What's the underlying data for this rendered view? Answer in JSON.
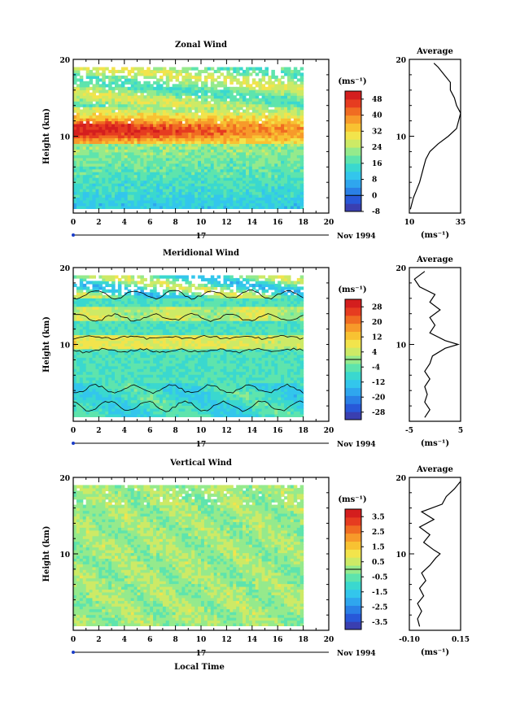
{
  "chart_data": [
    {
      "type": "heatmap",
      "title": "Zonal Wind",
      "ylabel": "Height (km)",
      "x_ticks": [
        "0",
        "2",
        "4",
        "6",
        "8",
        "10",
        "12",
        "14",
        "16",
        "18",
        "20"
      ],
      "y_ticks": [
        "10",
        "20"
      ],
      "xlim": [
        0,
        20
      ],
      "ylim": [
        0,
        20
      ],
      "date_label": "17",
      "date_suffix": "Nov 1994",
      "colorbar": {
        "unit": "(ms⁻¹)",
        "labels": [
          "48",
          "40",
          "32",
          "24",
          "16",
          "8",
          "0",
          "-8"
        ],
        "range": [
          -8,
          52
        ],
        "colors": [
          "#3a3fb0",
          "#2858d8",
          "#2a80e6",
          "#2fa6ee",
          "#33c6ec",
          "#3ad8cf",
          "#5ee4ad",
          "#95ea8c",
          "#cdea66",
          "#f2e44c",
          "#f8c232",
          "#f79a2a",
          "#f06c22",
          "#e63c20",
          "#d41e1e"
        ]
      },
      "profile": {
        "title": "Average",
        "x_ticks": [
          "10",
          "35"
        ],
        "xlim": [
          10,
          35
        ],
        "y_ticks": [
          "10",
          "20"
        ],
        "unit": "(ms⁻¹)",
        "heights": [
          0.5,
          1,
          2,
          3,
          4,
          5,
          6,
          7,
          8,
          9,
          10,
          11,
          12,
          13,
          14,
          15,
          16,
          17,
          18,
          19,
          19.5
        ],
        "values": [
          10.5,
          11,
          12,
          13.5,
          15,
          16,
          17,
          18,
          20,
          24,
          29,
          33,
          34,
          35,
          33,
          32,
          30,
          30,
          27,
          24,
          22
        ]
      },
      "data_extent_hours": 18
    },
    {
      "type": "heatmap",
      "title": "Meridional Wind",
      "ylabel": "Height (km)",
      "x_ticks": [
        "0",
        "2",
        "4",
        "6",
        "8",
        "10",
        "12",
        "14",
        "16",
        "18",
        "20"
      ],
      "y_ticks": [
        "10",
        "20"
      ],
      "xlim": [
        0,
        20
      ],
      "ylim": [
        0,
        20
      ],
      "date_label": "17",
      "date_suffix": "Nov 1994",
      "colorbar": {
        "unit": "(ms⁻¹)",
        "labels": [
          "28",
          "20",
          "12",
          "4",
          "-4",
          "-12",
          "-20",
          "-28"
        ],
        "range": [
          -32,
          32
        ],
        "colors": [
          "#3a3fb0",
          "#2858d8",
          "#2a80e6",
          "#2fa6ee",
          "#33c6ec",
          "#3ad8cf",
          "#5ee4ad",
          "#95ea8c",
          "#cdea66",
          "#f2e44c",
          "#f8c232",
          "#f79a2a",
          "#f06c22",
          "#e63c20",
          "#d41e1e"
        ]
      },
      "profile": {
        "title": "Average",
        "x_ticks": [
          "-5",
          "5"
        ],
        "xlim": [
          -5,
          5
        ],
        "y_ticks": [
          "10",
          "20"
        ],
        "unit": "(ms⁻¹)",
        "heights": [
          0.5,
          1.5,
          2.5,
          3.5,
          4.5,
          5.5,
          6.5,
          7.5,
          8.5,
          9.5,
          10,
          10.5,
          11.5,
          12.5,
          13.5,
          14.5,
          15.5,
          16.5,
          17.5,
          18.5,
          19.5
        ],
        "values": [
          -2,
          -1,
          -2,
          -1.5,
          -2,
          -1,
          -2,
          -1,
          -0.5,
          2,
          4.5,
          2,
          -1,
          0,
          -1,
          1,
          -1,
          0,
          -3,
          -4,
          -2
        ]
      },
      "data_extent_hours": 18
    },
    {
      "type": "heatmap",
      "title": "Vertical Wind",
      "ylabel": "Height (km)",
      "xlabel": "Local Time",
      "x_ticks": [
        "0",
        "2",
        "4",
        "6",
        "8",
        "10",
        "12",
        "14",
        "16",
        "18",
        "20"
      ],
      "y_ticks": [
        "10",
        "20"
      ],
      "xlim": [
        0,
        20
      ],
      "ylim": [
        0,
        20
      ],
      "date_label": "17",
      "date_suffix": "Nov 1994",
      "colorbar": {
        "unit": "(ms⁻¹)",
        "labels": [
          "3.5",
          "2.5",
          "1.5",
          "0.5",
          "-0.5",
          "-1.5",
          "-2.5",
          "-3.5"
        ],
        "range": [
          -4,
          4
        ],
        "colors": [
          "#3a3fb0",
          "#2858d8",
          "#2a80e6",
          "#2fa6ee",
          "#33c6ec",
          "#3ad8cf",
          "#5ee4ad",
          "#95ea8c",
          "#cdea66",
          "#f2e44c",
          "#f8c232",
          "#f79a2a",
          "#f06c22",
          "#e63c20",
          "#d41e1e"
        ]
      },
      "profile": {
        "title": "Average",
        "x_ticks": [
          "-0.10",
          "0.15"
        ],
        "xlim": [
          -0.1,
          0.15
        ],
        "y_ticks": [
          "10",
          "20"
        ],
        "unit": "(ms⁻¹)",
        "heights": [
          0.5,
          1.5,
          2.5,
          3.5,
          4.5,
          5.5,
          6.5,
          7.5,
          8.5,
          9.5,
          10,
          10.5,
          11.5,
          12.5,
          13.5,
          14.5,
          15.5,
          16.5,
          17.5,
          18.5,
          19.5
        ],
        "values": [
          -0.05,
          -0.06,
          -0.04,
          -0.06,
          -0.03,
          -0.05,
          -0.02,
          -0.04,
          0.0,
          0.03,
          0.05,
          0.02,
          -0.03,
          0.0,
          -0.05,
          0.02,
          -0.04,
          0.06,
          0.08,
          0.12,
          0.15
        ]
      },
      "data_extent_hours": 18
    }
  ]
}
